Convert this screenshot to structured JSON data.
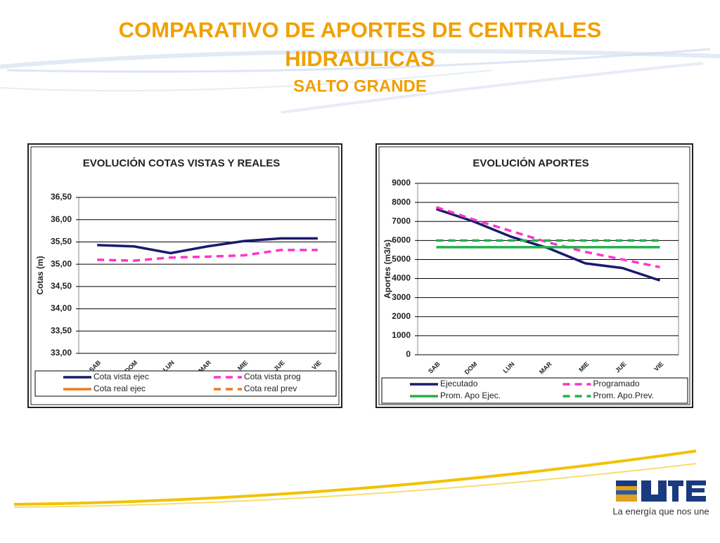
{
  "header": {
    "title": [
      "COMPARATIVO DE APORTES DE CENTRALES",
      "HIDRAULICAS"
    ],
    "subtitle": "SALTO GRANDE"
  },
  "chart_data": [
    {
      "type": "line",
      "title": "EVOLUCIÓN  COTAS VISTAS Y REALES",
      "y_label": "Cotas (m)",
      "categories": [
        "SAB",
        "DOM",
        "LUN",
        "MAR",
        "MIE",
        "JUE",
        "VIE"
      ],
      "ylim": [
        33,
        36.5
      ],
      "yticks": [
        {
          "value": 33,
          "label": "33,00"
        },
        {
          "value": 33.5,
          "label": "33,50"
        },
        {
          "value": 34,
          "label": "34,00"
        },
        {
          "value": 34.5,
          "label": "34,50"
        },
        {
          "value": 35,
          "label": "35,00"
        },
        {
          "value": 35.5,
          "label": "35,50"
        },
        {
          "value": 36,
          "label": "36,00"
        },
        {
          "value": 36.5,
          "label": "36,50"
        }
      ],
      "grid": true,
      "series": [
        {
          "name": "Cota vista ejec",
          "color": "#1a1a6e",
          "dashed": false,
          "values": [
            35.43,
            35.4,
            35.25,
            35.4,
            35.52,
            35.58,
            35.58
          ]
        },
        {
          "name": "Cota vista prog",
          "color": "#ff33cc",
          "dashed": true,
          "values": [
            35.1,
            35.08,
            35.15,
            35.17,
            35.2,
            35.32,
            35.32
          ]
        },
        {
          "name": "Cota real ejec",
          "color": "#f07820",
          "dashed": false,
          "values": [
            null,
            null,
            null,
            null,
            null,
            null,
            null
          ]
        },
        {
          "name": "Cota real prev",
          "color": "#f07820",
          "dashed": true,
          "values": [
            null,
            null,
            null,
            null,
            null,
            null,
            null
          ]
        }
      ]
    },
    {
      "type": "line",
      "title": "EVOLUCIÓN  APORTES",
      "y_label": "Aportes (m3/s)",
      "categories": [
        "SAB",
        "DOM",
        "LUN",
        "MAR",
        "MIE",
        "JUE",
        "VIE"
      ],
      "ylim": [
        0,
        9000
      ],
      "yticks": [
        0,
        1000,
        2000,
        3000,
        4000,
        5000,
        6000,
        7000,
        8000,
        9000
      ],
      "grid": true,
      "series": [
        {
          "name": "Ejecutado",
          "color": "#1a1a6e",
          "dashed": false,
          "values": [
            7650,
            7000,
            6200,
            5600,
            4800,
            4550,
            3900
          ]
        },
        {
          "name": "Programado",
          "color": "#ff33cc",
          "dashed": true,
          "values": [
            7750,
            7100,
            6500,
            5900,
            5400,
            5000,
            4600
          ]
        },
        {
          "name": "Prom. Apo Ejec.",
          "color": "#22b04b",
          "dashed": false,
          "values": [
            5650,
            5650,
            5650,
            5650,
            5650,
            5650,
            5650
          ]
        },
        {
          "name": "Prom. Apo.Prev.",
          "color": "#22b04b",
          "dashed": true,
          "values": [
            6000,
            6000,
            6000,
            6000,
            6000,
            6000,
            6000
          ]
        }
      ]
    }
  ],
  "footer": {
    "tagline": "La energía que nos une"
  }
}
